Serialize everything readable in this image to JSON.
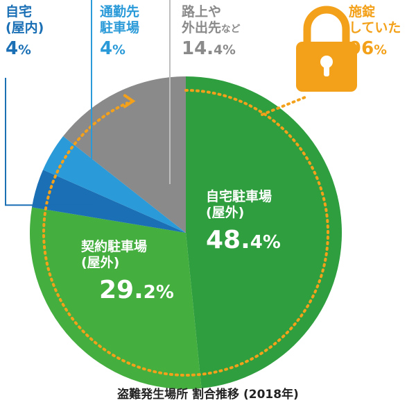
{
  "chart_data": {
    "type": "pie",
    "slices": [
      {
        "label": "自宅駐車場(屋外)",
        "value": 48.4,
        "color": "#2e9e3f"
      },
      {
        "label": "契約駐車場(屋外)",
        "value": 29.2,
        "color": "#44ae3f"
      },
      {
        "label": "自宅(屋内)",
        "value": 4,
        "color": "#1a6fb5"
      },
      {
        "label": "通勤先駐車場",
        "value": 4,
        "color": "#2a9ad8"
      },
      {
        "label": "路上や外出先など",
        "value": 14.4,
        "color": "#8a8a8a"
      }
    ],
    "locked_share": {
      "label": "施錠していた",
      "value": 96,
      "color": "#f3a11a"
    },
    "title": "盗難発生場所 割合推移 (2018年)"
  },
  "labels": {
    "home_indoor": {
      "line1": "自宅",
      "line2": "(屋内)",
      "num": "4",
      "unit": "%"
    },
    "commute": {
      "line1": "通勤先",
      "line2": "駐車場",
      "num": "4",
      "unit": "%"
    },
    "street": {
      "line1": "路上や",
      "line2a": "外出先",
      "line2b": "など",
      "num": "14.",
      "num_small": "4",
      "unit": "%"
    },
    "locked": {
      "line1": "施錠",
      "line2": "していた",
      "num": "96",
      "unit": "%"
    },
    "home_outdoor": {
      "line1": "自宅駐車場",
      "line2": "(屋外)",
      "num": "48.",
      "num_small": "4",
      "unit": "%"
    },
    "contract": {
      "line1": "契約駐車場",
      "line2": "(屋外)",
      "num": "29.",
      "num_small": "2",
      "unit": "%"
    }
  },
  "caption": "盗難発生場所 割合推移 (2018年)"
}
